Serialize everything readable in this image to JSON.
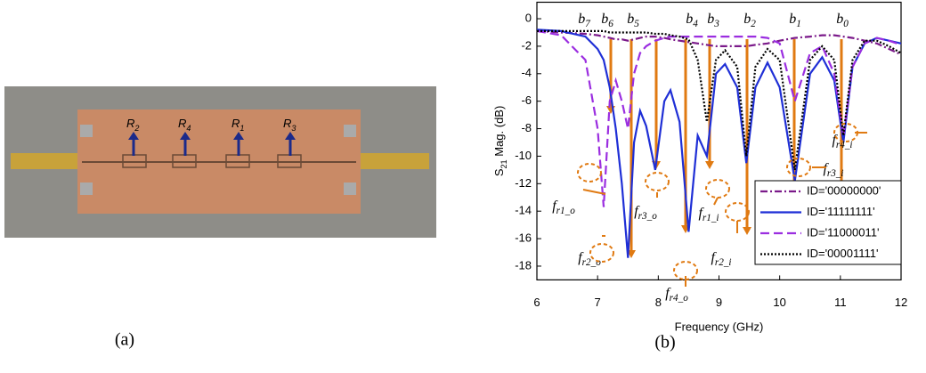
{
  "photo": {
    "labels": [
      "R2",
      "R4",
      "R1",
      "R3"
    ],
    "caption": "(a)"
  },
  "chart_caption": "(b)",
  "chart_data": {
    "type": "line",
    "x_label": "Frequency (GHz)",
    "y_label": "S21 Mag. (dB)",
    "x": [
      6,
      6.4,
      6.8,
      7.0,
      7.1,
      7.2,
      7.3,
      7.4,
      7.5,
      7.6,
      7.7,
      7.8,
      7.95,
      8.1,
      8.2,
      8.35,
      8.5,
      8.65,
      8.8,
      8.95,
      9.1,
      9.3,
      9.45,
      9.6,
      9.8,
      10.0,
      10.25,
      10.5,
      10.7,
      10.9,
      11.05,
      11.2,
      11.4,
      11.6,
      11.8,
      12
    ],
    "series": [
      {
        "name": "ID='00000000'",
        "color": "#7b1a8a",
        "dash": "8,3,2,3",
        "values": [
          -0.9,
          -1,
          -1.1,
          -1.2,
          -1.3,
          -1.4,
          -1.5,
          -1.5,
          -1.6,
          -1.5,
          -1.4,
          -1.3,
          -1.3,
          -1.4,
          -1.5,
          -1.6,
          -1.7,
          -1.8,
          -1.9,
          -2,
          -2,
          -2,
          -2,
          -1.9,
          -1.8,
          -1.6,
          -1.4,
          -1.3,
          -1.2,
          -1.2,
          -1.3,
          -1.4,
          -1.6,
          -1.8,
          -2.2,
          -2.6
        ]
      },
      {
        "name": "ID='11111111'",
        "color": "#1f2fd6",
        "dash": "",
        "values": [
          -0.8,
          -0.9,
          -1.3,
          -2.2,
          -3,
          -5,
          -8,
          -12,
          -17.4,
          -9,
          -6.7,
          -7.8,
          -11,
          -6,
          -5.2,
          -7.5,
          -15.5,
          -8.5,
          -10,
          -4,
          -3.3,
          -5,
          -10.5,
          -5,
          -3.2,
          -5,
          -11.8,
          -4,
          -2.8,
          -4.5,
          -9,
          -3.5,
          -1.8,
          -1.4,
          -1.6,
          -1.8
        ]
      },
      {
        "name": "ID='11000011'",
        "color": "#9b2ee0",
        "dash": "10,5",
        "values": [
          -0.9,
          -1.2,
          -3,
          -8,
          -13.7,
          -6,
          -4.5,
          -6,
          -8,
          -4,
          -2.5,
          -2,
          -1.6,
          -1.4,
          -1.3,
          -1.3,
          -1.3,
          -1.3,
          -1.3,
          -1.3,
          -1.3,
          -1.3,
          -1.3,
          -1.3,
          -1.4,
          -1.8,
          -6,
          -2.5,
          -2,
          -4,
          -8.6,
          -3.5,
          -1.8,
          -1.4,
          -1.6,
          -1.9
        ]
      },
      {
        "name": "ID='00001111'",
        "color": "#000000",
        "dash": "2,2",
        "values": [
          -0.9,
          -0.9,
          -0.9,
          -0.9,
          -0.9,
          -1,
          -1,
          -1,
          -1,
          -1,
          -1,
          -1,
          -1.1,
          -1.1,
          -1.2,
          -1.3,
          -1.5,
          -3,
          -7.5,
          -3,
          -2.3,
          -3.5,
          -10,
          -3.5,
          -2.2,
          -3,
          -11,
          -3,
          -2,
          -3,
          -8.5,
          -3,
          -1.6,
          -1.6,
          -2,
          -2.5
        ]
      }
    ],
    "xlim": [
      6,
      12
    ],
    "ylim": [
      -19,
      1.2
    ],
    "xticks": [
      6,
      7,
      8,
      9,
      10,
      11,
      12
    ],
    "yticks": [
      0,
      -2,
      -4,
      -6,
      -8,
      -10,
      -12,
      -14,
      -16,
      -18
    ],
    "legend": "lower right",
    "annotations": [
      "b7",
      "b6",
      "b5",
      "b4",
      "b3",
      "b2",
      "b1",
      "b0",
      "fr1_o",
      "fr2_o",
      "fr3_o",
      "fr4_o",
      "fr1_i",
      "fr2_i",
      "fr3_i",
      "fr4_i"
    ]
  }
}
